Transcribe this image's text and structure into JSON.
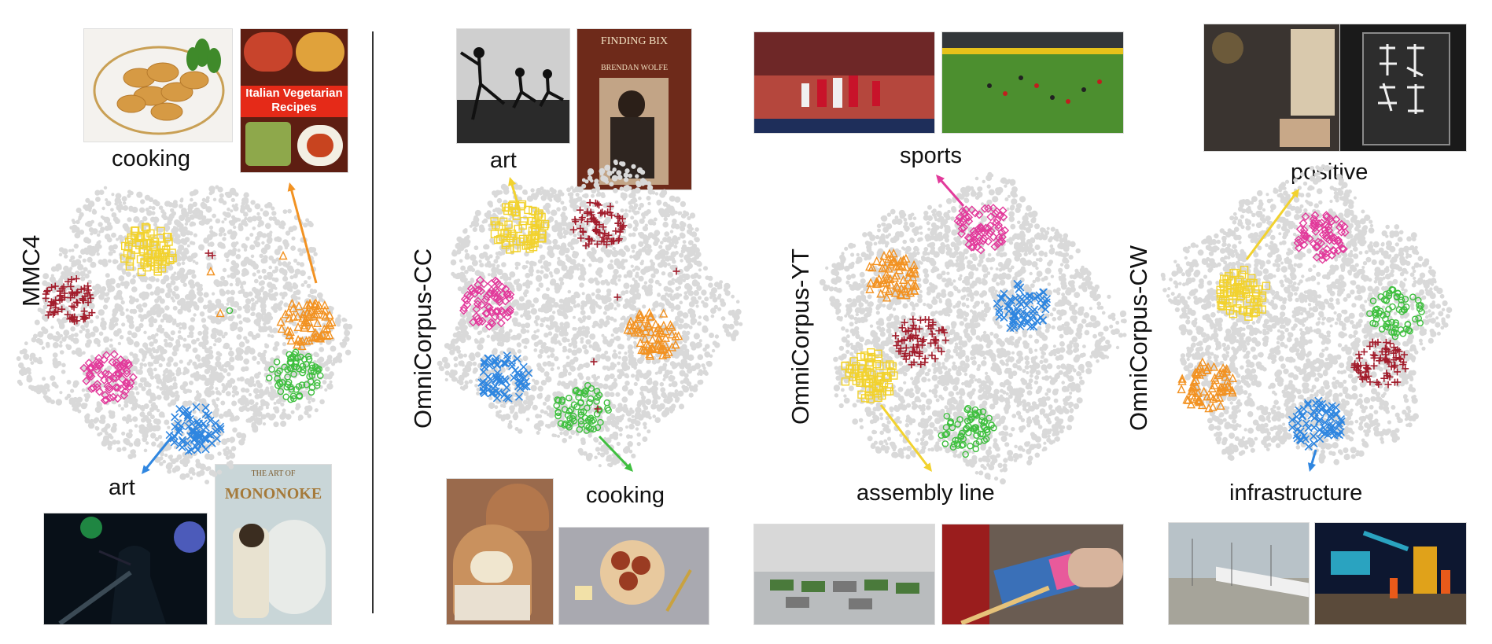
{
  "panels": [
    {
      "id": "mmc4",
      "dataset": "MMC4",
      "callouts": [
        {
          "text": "cooking"
        },
        {
          "text": "art"
        }
      ],
      "cluster_colors": [
        "#f2d22e",
        "#a21d2c",
        "#e23a9b",
        "#2f86e0",
        "#f29222",
        "#3fbf3f"
      ]
    },
    {
      "id": "cc",
      "dataset": "OmniCorpus-CC",
      "callouts": [
        {
          "text": "art"
        },
        {
          "text": "cooking"
        }
      ],
      "cluster_colors": [
        "#f2d22e",
        "#a21d2c",
        "#e23a9b",
        "#2f86e0",
        "#f29222",
        "#3fbf3f"
      ]
    },
    {
      "id": "yt",
      "dataset": "OmniCorpus-YT",
      "callouts": [
        {
          "text": "sports"
        },
        {
          "text": "assembly line"
        }
      ],
      "cluster_colors": [
        "#e23a9b",
        "#f29222",
        "#2f86e0",
        "#a21d2c",
        "#f2d22e",
        "#3fbf3f"
      ]
    },
    {
      "id": "cw",
      "dataset": "OmniCorpus-CW",
      "callouts": [
        {
          "text": "positive"
        },
        {
          "text": "infrastructure"
        }
      ],
      "cluster_colors": [
        "#e23a9b",
        "#f2d22e",
        "#3fbf3f",
        "#a21d2c",
        "#f29222",
        "#2f86e0"
      ]
    }
  ],
  "image_text": {
    "italian_book": "Italian Vegetarian Recipes",
    "finding_bix_title": "FINDING BIX",
    "finding_bix_author": "BRENDAN WOLFE",
    "mononoke_top": "THE ART OF",
    "mononoke_main": "MONONOKE"
  },
  "colors": {
    "cloud": "#d9d9d9",
    "divider": "#333333"
  }
}
